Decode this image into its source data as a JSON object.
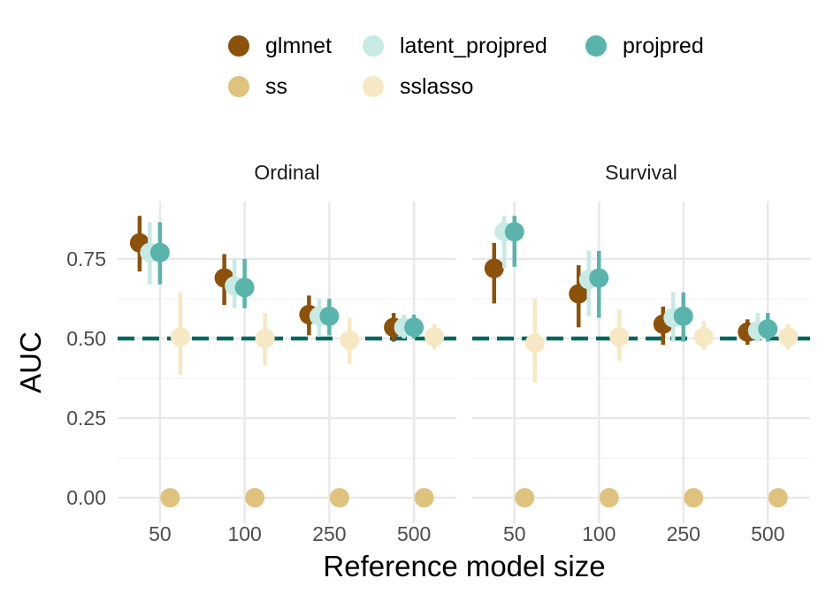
{
  "chart_data": {
    "type": "scatter",
    "subtype": "pointrange-faceted",
    "xlabel": "Reference model size",
    "ylabel": "AUC",
    "categories": [
      "50",
      "100",
      "250",
      "500"
    ],
    "ylim": [
      -0.08,
      0.93
    ],
    "yticks": [
      0.0,
      0.25,
      0.5,
      0.75
    ],
    "ytick_labels": [
      "0.00",
      "0.25",
      "0.50",
      "0.75"
    ],
    "grid": true,
    "legend_position": "top",
    "reference_line": {
      "y": 0.5,
      "style": "dashed",
      "color": "#01665E"
    },
    "facets": [
      "Ordinal",
      "Survival"
    ],
    "legend": [
      {
        "name": "glmnet",
        "color": "#8C510A"
      },
      {
        "name": "latent_projpred",
        "color": "#C7EAE5"
      },
      {
        "name": "projpred",
        "color": "#5AB4AC"
      },
      {
        "name": "ss",
        "color": "#DFC27D"
      },
      {
        "name": "sslasso",
        "color": "#F6E8C3"
      }
    ],
    "series_order": [
      "glmnet",
      "latent_projpred",
      "projpred",
      "ss",
      "sslasso"
    ],
    "panels": [
      {
        "facet": "Ordinal",
        "series": [
          {
            "name": "glmnet",
            "y": [
              0.8,
              0.69,
              0.575,
              0.535
            ],
            "lo": [
              0.71,
              0.605,
              0.51,
              0.49
            ],
            "hi": [
              0.885,
              0.765,
              0.635,
              0.58
            ]
          },
          {
            "name": "latent_projpred",
            "y": [
              0.77,
              0.665,
              0.57,
              0.535
            ],
            "lo": [
              0.67,
              0.595,
              0.505,
              0.5
            ],
            "hi": [
              0.865,
              0.75,
              0.625,
              0.575
            ]
          },
          {
            "name": "projpred",
            "y": [
              0.77,
              0.66,
              0.57,
              0.535
            ],
            "lo": [
              0.67,
              0.595,
              0.51,
              0.5
            ],
            "hi": [
              0.865,
              0.75,
              0.625,
              0.575
            ]
          },
          {
            "name": "ss",
            "y": [
              0.0,
              0.0,
              0.0,
              0.0
            ],
            "lo": [
              0.0,
              0.0,
              0.0,
              0.0
            ],
            "hi": [
              0.0,
              0.0,
              0.0,
              0.0
            ]
          },
          {
            "name": "sslasso",
            "y": [
              0.505,
              0.5,
              0.495,
              0.505
            ],
            "lo": [
              0.385,
              0.415,
              0.42,
              0.465
            ],
            "hi": [
              0.645,
              0.58,
              0.565,
              0.545
            ]
          }
        ]
      },
      {
        "facet": "Survival",
        "series": [
          {
            "name": "glmnet",
            "y": [
              0.72,
              0.64,
              0.545,
              0.52
            ],
            "lo": [
              0.61,
              0.535,
              0.48,
              0.48
            ],
            "hi": [
              0.8,
              0.73,
              0.6,
              0.56
            ]
          },
          {
            "name": "latent_projpred",
            "y": [
              0.835,
              0.685,
              0.565,
              0.525
            ],
            "lo": [
              0.72,
              0.57,
              0.49,
              0.49
            ],
            "hi": [
              0.885,
              0.775,
              0.645,
              0.58
            ]
          },
          {
            "name": "projpred",
            "y": [
              0.835,
              0.69,
              0.57,
              0.53
            ],
            "lo": [
              0.725,
              0.565,
              0.49,
              0.49
            ],
            "hi": [
              0.885,
              0.775,
              0.645,
              0.58
            ]
          },
          {
            "name": "ss",
            "y": [
              0.0,
              0.0,
              0.0,
              0.0
            ],
            "lo": [
              0.0,
              0.0,
              0.0,
              0.0
            ],
            "hi": [
              0.0,
              0.0,
              0.0,
              0.0
            ]
          },
          {
            "name": "sslasso",
            "y": [
              0.485,
              0.505,
              0.505,
              0.505
            ],
            "lo": [
              0.36,
              0.43,
              0.465,
              0.465
            ],
            "hi": [
              0.625,
              0.59,
              0.555,
              0.545
            ]
          }
        ]
      }
    ]
  }
}
